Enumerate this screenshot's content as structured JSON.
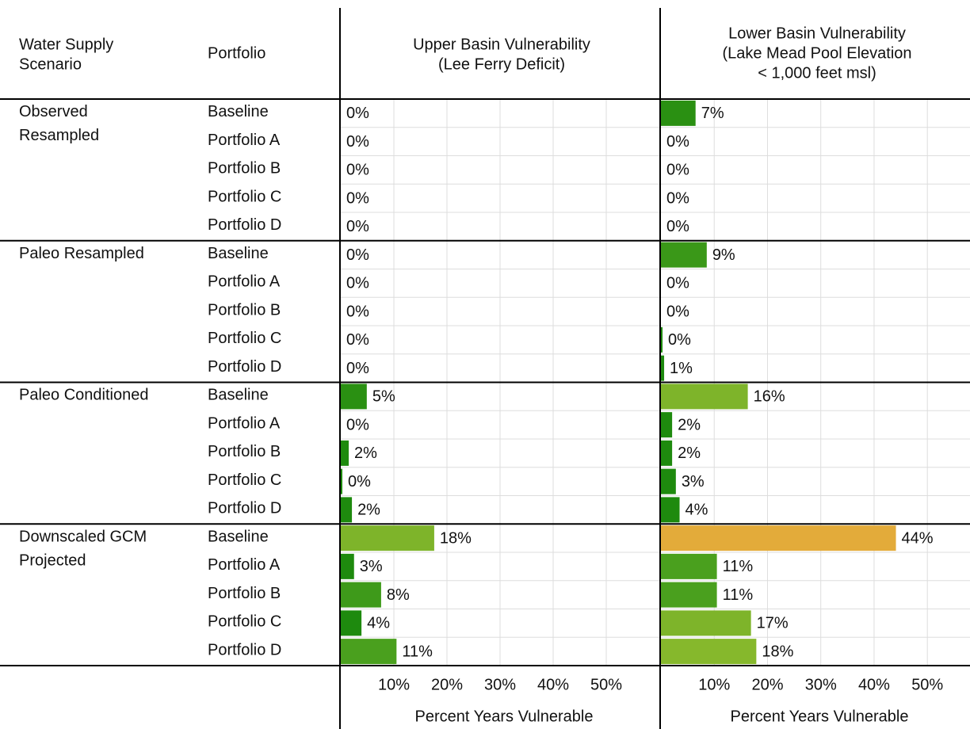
{
  "table": {
    "headers": [
      [
        "Water Supply",
        "Scenario"
      ],
      "Portfolio"
    ],
    "groups": [
      {
        "scenario": [
          "Observed",
          "Resampled"
        ],
        "portfolios": [
          "Baseline",
          "Portfolio A",
          "Portfolio B",
          "Portfolio C",
          "Portfolio D"
        ]
      },
      {
        "scenario": [
          "Paleo Resampled"
        ],
        "portfolios": [
          "Baseline",
          "Portfolio A",
          "Portfolio B",
          "Portfolio C",
          "Portfolio D"
        ]
      },
      {
        "scenario": [
          "Paleo Conditioned"
        ],
        "portfolios": [
          "Baseline",
          "Portfolio A",
          "Portfolio B",
          "Portfolio C",
          "Portfolio D"
        ]
      },
      {
        "scenario": [
          "Downscaled GCM",
          "Projected"
        ],
        "portfolios": [
          "Baseline",
          "Portfolio A",
          "Portfolio B",
          "Portfolio C",
          "Portfolio D"
        ]
      }
    ]
  },
  "chart_data": [
    {
      "type": "bar",
      "orientation": "horizontal",
      "title": [
        "Upper Basin Vulnerability",
        "(Lee Ferry Deficit)"
      ],
      "xlabel": "Percent Years Vulnerable",
      "values": [
        0,
        0,
        0,
        0,
        0,
        0,
        0,
        0,
        0,
        0,
        4.9,
        0,
        1.5,
        0.3,
        2.1,
        17.6,
        2.5,
        7.6,
        3.9,
        10.5
      ],
      "value_labels": [
        "0%",
        "0%",
        "0%",
        "0%",
        "0%",
        "0%",
        "0%",
        "0%",
        "0%",
        "0%",
        "5%",
        "0%",
        "2%",
        "0%",
        "2%",
        "18%",
        "3%",
        "8%",
        "4%",
        "11%"
      ],
      "colors": [
        "#1e8a0e",
        "#1e8a0e",
        "#1e8a0e",
        "#1e8a0e",
        "#1e8a0e",
        "#1e8a0e",
        "#1e8a0e",
        "#1e8a0e",
        "#1e8a0e",
        "#1e8a0e",
        "#2a9012",
        "#1e8a0e",
        "#1e8a0e",
        "#1e8a0e",
        "#1e8a0e",
        "#7eb42a",
        "#1e8a0e",
        "#3e9a1a",
        "#1e8a0e",
        "#4aa01e"
      ],
      "xlim": [
        0,
        60
      ],
      "xticks": [
        {
          "value": 10,
          "label": "10%"
        },
        {
          "value": 20,
          "label": "20%"
        },
        {
          "value": 30,
          "label": "30%"
        },
        {
          "value": 40,
          "label": "40%"
        },
        {
          "value": 50,
          "label": "50%"
        }
      ],
      "grid": true
    },
    {
      "type": "bar",
      "orientation": "horizontal",
      "title": [
        "Lower Basin Vulnerability",
        "(Lake Mead Pool Elevation",
        "< 1,000 feet msl)"
      ],
      "xlabel": "Percent Years Vulnerable",
      "values": [
        6.5,
        0,
        0,
        0,
        0,
        8.6,
        0,
        0,
        0.3,
        0.6,
        16.3,
        2.1,
        2.1,
        2.8,
        3.5,
        44.1,
        10.5,
        10.5,
        16.9,
        17.9
      ],
      "value_labels": [
        "7%",
        "0%",
        "0%",
        "0%",
        "0%",
        "9%",
        "0%",
        "0%",
        "0%",
        "1%",
        "16%",
        "2%",
        "2%",
        "3%",
        "4%",
        "44%",
        "11%",
        "11%",
        "17%",
        "18%"
      ],
      "colors": [
        "#2a9012",
        "#1e8a0e",
        "#1e8a0e",
        "#1e8a0e",
        "#1e8a0e",
        "#3a9818",
        "#1e8a0e",
        "#1e8a0e",
        "#1e8a0e",
        "#1e8a0e",
        "#7eb42a",
        "#1e8a0e",
        "#1e8a0e",
        "#1e8a0e",
        "#1e8a0e",
        "#e3ab3a",
        "#4aa01e",
        "#4aa01e",
        "#7eb42a",
        "#86b82c"
      ],
      "xlim": [
        0,
        58
      ],
      "xticks": [
        {
          "value": 10,
          "label": "10%"
        },
        {
          "value": 20,
          "label": "20%"
        },
        {
          "value": 30,
          "label": "30%"
        },
        {
          "value": 40,
          "label": "40%"
        },
        {
          "value": 50,
          "label": "50%"
        }
      ],
      "grid": true
    }
  ]
}
